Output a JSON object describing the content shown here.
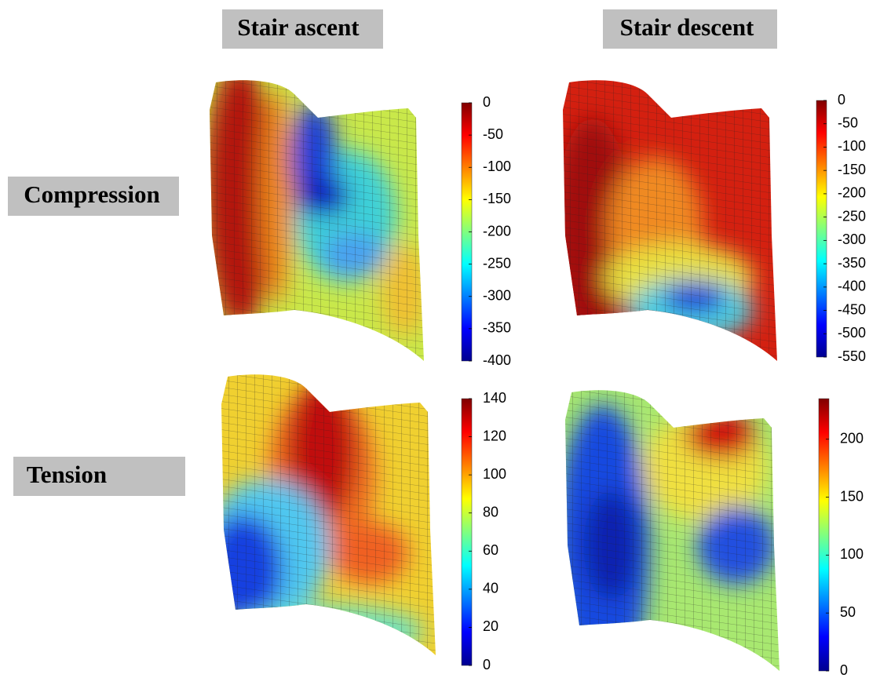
{
  "columns": [
    "Stair ascent",
    "Stair descent"
  ],
  "rows": [
    "Compression",
    "Tension"
  ],
  "colorbars": [
    {
      "lim": [
        -400,
        0
      ],
      "ticks": [
        0,
        -50,
        -100,
        -150,
        -200,
        -250,
        -300,
        -350,
        -400
      ]
    },
    {
      "lim": [
        -550,
        0
      ],
      "ticks": [
        0,
        -50,
        -100,
        -150,
        -200,
        -250,
        -300,
        -350,
        -400,
        -450,
        -500,
        -550
      ]
    },
    {
      "lim": [
        0,
        140
      ],
      "ticks": [
        140,
        120,
        100,
        80,
        60,
        40,
        20,
        0
      ]
    },
    {
      "lim": [
        0,
        235
      ],
      "ticks": [
        200,
        150,
        100,
        50,
        0
      ]
    }
  ]
}
